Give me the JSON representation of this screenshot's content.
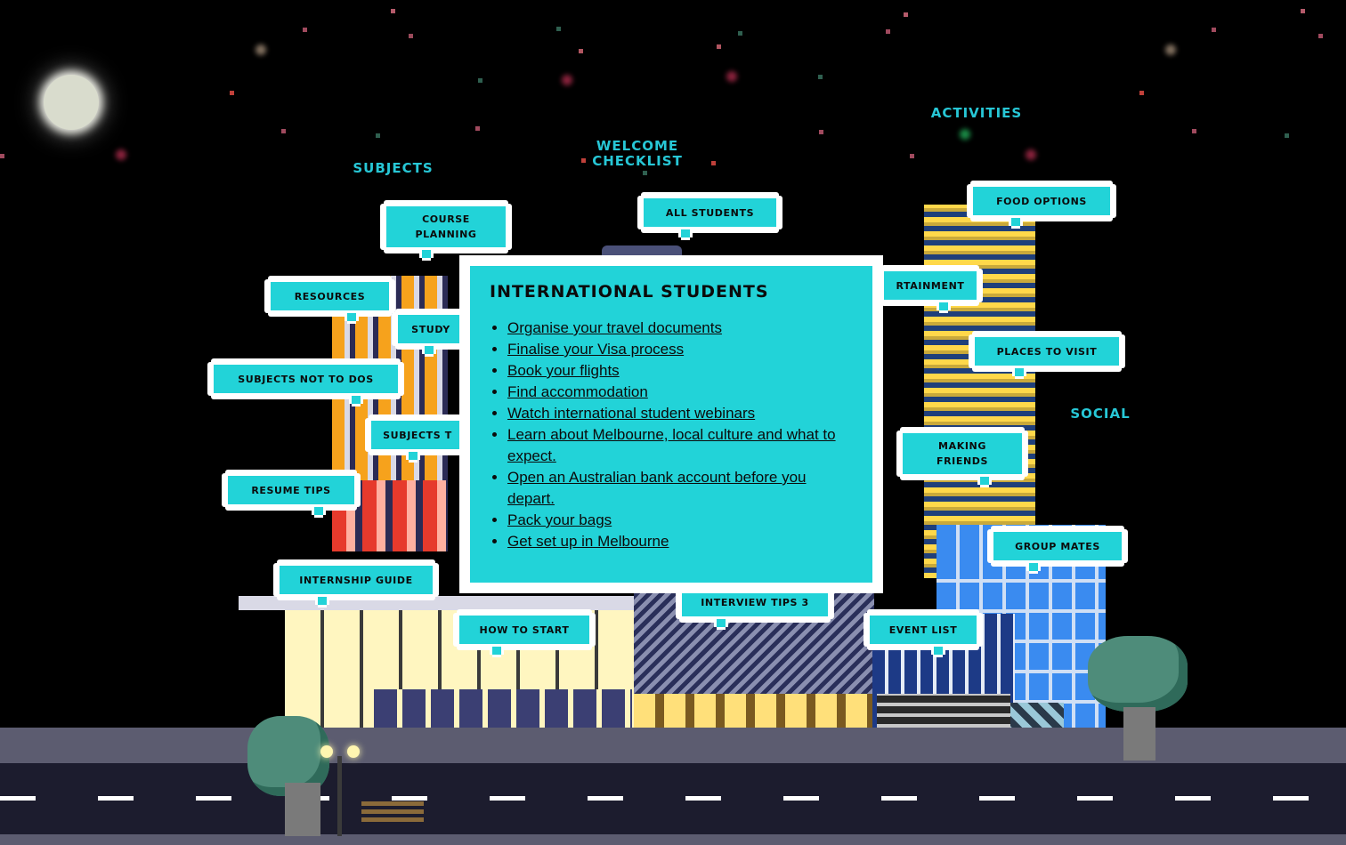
{
  "section_labels": {
    "subjects": "SUBJECTS",
    "welcome_checklist": "WELCOME\nCHECKLIST",
    "activities": "ACTIVITIES",
    "social": "SOCIAL"
  },
  "bubbles": {
    "course_planning": "COURSE\nPLANNING",
    "all_students": "ALL STUDENTS",
    "food_options": "FOOD OPTIONS",
    "resources": "RESOURCES",
    "study": "STUDY",
    "entertainment": "RTAINMENT",
    "places_to_visit": "PLACES TO VISIT",
    "subjects_not_to_dos": "SUBJECTS NOT TO DOS",
    "subjects_partial": "SUBJECTS T",
    "making_friends": "MAKING\nFRIENDS",
    "resume_tips": "RESUME TIPS",
    "group_mates": "GROUP MATES",
    "internship_guide": "INTERNSHIP GUIDE",
    "interview_tips": "INTERVIEW TIPS 3",
    "how_to_start": "HOW TO START",
    "event_list": "EVENT LIST"
  },
  "modal": {
    "title": "INTERNATIONAL STUDENTS",
    "items": [
      "Organise your travel documents",
      "Finalise your Visa process",
      "Book your flights",
      "Find accommodation",
      "Watch international student webinars",
      "Learn about Melbourne, local culture and what to expect.",
      "Open an Australian bank account before you depart.",
      "Pack your bags",
      "Get set up in Melbourne"
    ]
  },
  "colors": {
    "sky": "#000000",
    "accent": "#22d3d8",
    "label": "#27c7d6",
    "road": "#1c1c2e",
    "sidewalk": "#5c5c70"
  },
  "icons": {
    "moon": "moon-icon",
    "tree": "tree-icon",
    "lamp": "street-lamp-icon",
    "bench": "bench-icon"
  }
}
